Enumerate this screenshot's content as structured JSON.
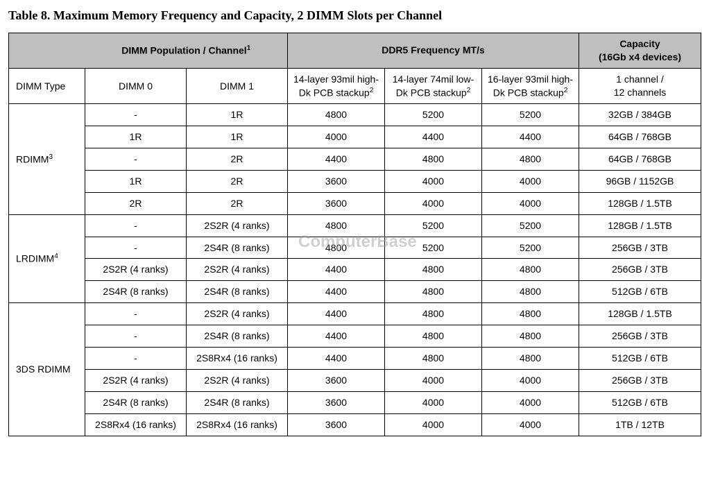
{
  "title": "Table 8. Maximum Memory Frequency and Capacity, 2 DIMM Slots per Channel",
  "watermark": "ComputerBase",
  "colors": {
    "header_bg": "#bfbfbf",
    "border": "#000000",
    "text": "#000000",
    "background": "#ffffff"
  },
  "fonts": {
    "title_family": "Times New Roman",
    "title_size_pt": 14,
    "title_weight": "bold",
    "body_family": "Arial",
    "body_size_pt": 11
  },
  "headers": {
    "pop_channel": "DIMM Population / Channel",
    "pop_channel_sup": "1",
    "freq": "DDR5 Frequency MT/s",
    "capacity": "Capacity\n(16Gb x4 devices)",
    "dimm_type": "DIMM Type",
    "dimm0": "DIMM 0",
    "dimm1": "DIMM 1",
    "stack1": "14-layer 93mil high-Dk PCB stackup",
    "stack2": "14-layer 74mil low-Dk PCB stackup",
    "stack3": "16-layer 93mil high-Dk PCB stackup",
    "stack_sup": "2",
    "cap_sub": "1 channel /\n12 channels"
  },
  "groups": [
    {
      "label": "RDIMM",
      "sup": "3",
      "rows": [
        {
          "dimm0": "-",
          "dimm1": "1R",
          "f1": "4800",
          "f2": "5200",
          "f3": "5200",
          "cap": "32GB / 384GB"
        },
        {
          "dimm0": "1R",
          "dimm1": "1R",
          "f1": "4000",
          "f2": "4400",
          "f3": "4400",
          "cap": "64GB / 768GB"
        },
        {
          "dimm0": "-",
          "dimm1": "2R",
          "f1": "4400",
          "f2": "4800",
          "f3": "4800",
          "cap": "64GB / 768GB"
        },
        {
          "dimm0": "1R",
          "dimm1": "2R",
          "f1": "3600",
          "f2": "4000",
          "f3": "4000",
          "cap": "96GB / 1152GB"
        },
        {
          "dimm0": "2R",
          "dimm1": "2R",
          "f1": "3600",
          "f2": "4000",
          "f3": "4000",
          "cap": "128GB / 1.5TB"
        }
      ]
    },
    {
      "label": "LRDIMM",
      "sup": "4",
      "rows": [
        {
          "dimm0": "-",
          "dimm1": "2S2R (4 ranks)",
          "f1": "4800",
          "f2": "5200",
          "f3": "5200",
          "cap": "128GB / 1.5TB"
        },
        {
          "dimm0": "-",
          "dimm1": "2S4R (8 ranks)",
          "f1": "4800",
          "f2": "5200",
          "f3": "5200",
          "cap": "256GB / 3TB"
        },
        {
          "dimm0": "2S2R (4 ranks)",
          "dimm1": "2S2R (4 ranks)",
          "f1": "4400",
          "f2": "4800",
          "f3": "4800",
          "cap": "256GB / 3TB"
        },
        {
          "dimm0": "2S4R (8 ranks)",
          "dimm1": "2S4R (8 ranks)",
          "f1": "4400",
          "f2": "4800",
          "f3": "4800",
          "cap": "512GB / 6TB"
        }
      ]
    },
    {
      "label": "3DS RDIMM",
      "sup": "",
      "rows": [
        {
          "dimm0": "-",
          "dimm1": "2S2R (4 ranks)",
          "f1": "4400",
          "f2": "4800",
          "f3": "4800",
          "cap": "128GB / 1.5TB"
        },
        {
          "dimm0": "-",
          "dimm1": "2S4R (8 ranks)",
          "f1": "4400",
          "f2": "4800",
          "f3": "4800",
          "cap": "256GB / 3TB"
        },
        {
          "dimm0": "-",
          "dimm1": "2S8Rx4 (16 ranks)",
          "f1": "4400",
          "f2": "4800",
          "f3": "4800",
          "cap": "512GB / 6TB"
        },
        {
          "dimm0": "2S2R (4 ranks)",
          "dimm1": "2S2R (4 ranks)",
          "f1": "3600",
          "f2": "4000",
          "f3": "4000",
          "cap": "256GB / 3TB"
        },
        {
          "dimm0": "2S4R (8 ranks)",
          "dimm1": "2S4R (8 ranks)",
          "f1": "3600",
          "f2": "4000",
          "f3": "4000",
          "cap": "512GB / 6TB"
        },
        {
          "dimm0": "2S8Rx4 (16 ranks)",
          "dimm1": "2S8Rx4 (16 ranks)",
          "f1": "3600",
          "f2": "4000",
          "f3": "4000",
          "cap": "1TB / 12TB"
        }
      ]
    }
  ]
}
